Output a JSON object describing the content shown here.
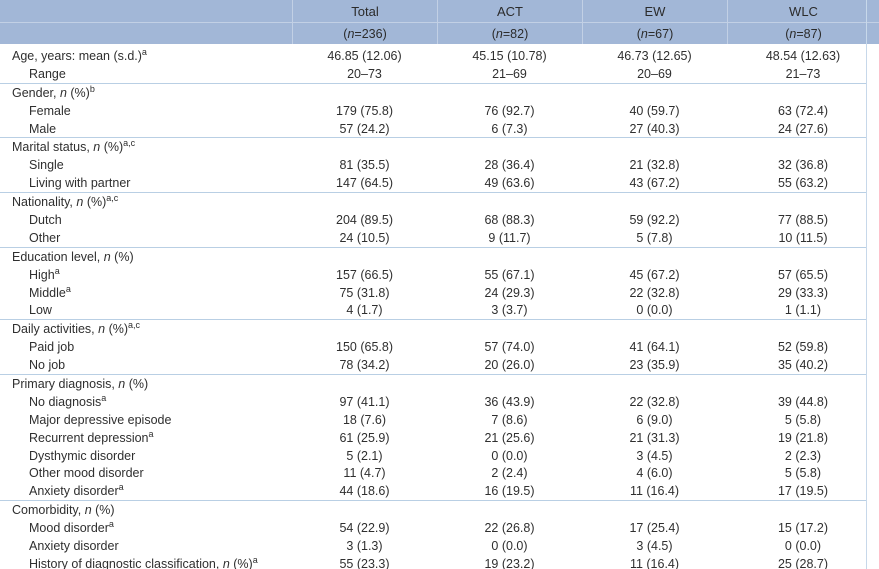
{
  "colors": {
    "header_bg": "#a2b7d7",
    "divider": "#b9cfe4",
    "grid_line": "rgba(255,255,255,0.35)",
    "text": "#2f2f2f"
  },
  "header": {
    "n_open": "(",
    "n_var": "n",
    "n_eq": " = ",
    "n_close": ")",
    "columns": [
      {
        "name": "Total",
        "n": "236"
      },
      {
        "name": "ACT",
        "n": "82"
      },
      {
        "name": "EW",
        "n": "67"
      },
      {
        "name": "WLC",
        "n": "87"
      }
    ]
  },
  "table": {
    "rows": [
      {
        "label": {
          "pre": "Age, years: mean (s.d.)",
          "sup": "a"
        },
        "indent": false,
        "values": [
          "46.85 (12.06)",
          "45.15 (10.78)",
          "46.73 (12.65)",
          "48.54 (12.63)"
        ],
        "divider_after": false
      },
      {
        "label": {
          "pre": "Range"
        },
        "indent": true,
        "values": [
          "20–73",
          "21–69",
          "20–69",
          "21–73"
        ],
        "divider_after": true
      },
      {
        "label": {
          "pre": "Gender, ",
          "it": "n",
          "post": " (%)",
          "sup": "b"
        },
        "indent": false,
        "values": [
          "",
          "",
          "",
          ""
        ],
        "divider_after": false
      },
      {
        "label": {
          "pre": "Female"
        },
        "indent": true,
        "values": [
          "179 (75.8)",
          "76 (92.7)",
          "40 (59.7)",
          "63 (72.4)"
        ],
        "divider_after": false
      },
      {
        "label": {
          "pre": "Male"
        },
        "indent": true,
        "values": [
          "57 (24.2)",
          "6 (7.3)",
          "27 (40.3)",
          "24 (27.6)"
        ],
        "divider_after": true
      },
      {
        "label": {
          "pre": "Marital status, ",
          "it": "n",
          "post": " (%)",
          "sup": "a,c"
        },
        "indent": false,
        "values": [
          "",
          "",
          "",
          ""
        ],
        "divider_after": false
      },
      {
        "label": {
          "pre": "Single"
        },
        "indent": true,
        "values": [
          "81 (35.5)",
          "28 (36.4)",
          "21 (32.8)",
          "32 (36.8)"
        ],
        "divider_after": false
      },
      {
        "label": {
          "pre": "Living with partner"
        },
        "indent": true,
        "values": [
          "147 (64.5)",
          "49 (63.6)",
          "43 (67.2)",
          "55 (63.2)"
        ],
        "divider_after": true
      },
      {
        "label": {
          "pre": "Nationality, ",
          "it": "n",
          "post": " (%)",
          "sup": "a,c"
        },
        "indent": false,
        "values": [
          "",
          "",
          "",
          ""
        ],
        "divider_after": false
      },
      {
        "label": {
          "pre": "Dutch"
        },
        "indent": true,
        "values": [
          "204 (89.5)",
          "68 (88.3)",
          "59 (92.2)",
          "77 (88.5)"
        ],
        "divider_after": false
      },
      {
        "label": {
          "pre": "Other"
        },
        "indent": true,
        "values": [
          "24 (10.5)",
          "9 (11.7)",
          "5 (7.8)",
          "10 (11.5)"
        ],
        "divider_after": true
      },
      {
        "label": {
          "pre": "Education level, ",
          "it": "n",
          "post": " (%)"
        },
        "indent": false,
        "values": [
          "",
          "",
          "",
          ""
        ],
        "divider_after": false
      },
      {
        "label": {
          "pre": "High",
          "sup": "a"
        },
        "indent": true,
        "values": [
          "157 (66.5)",
          "55 (67.1)",
          "45 (67.2)",
          "57 (65.5)"
        ],
        "divider_after": false
      },
      {
        "label": {
          "pre": "Middle",
          "sup": "a"
        },
        "indent": true,
        "values": [
          "75 (31.8)",
          "24 (29.3)",
          "22 (32.8)",
          "29 (33.3)"
        ],
        "divider_after": false
      },
      {
        "label": {
          "pre": "Low"
        },
        "indent": true,
        "values": [
          "4 (1.7)",
          "3 (3.7)",
          "0 (0.0)",
          "1 (1.1)"
        ],
        "divider_after": true
      },
      {
        "label": {
          "pre": "Daily activities, ",
          "it": "n",
          "post": " (%)",
          "sup": "a,c"
        },
        "indent": false,
        "values": [
          "",
          "",
          "",
          ""
        ],
        "divider_after": false
      },
      {
        "label": {
          "pre": "Paid job"
        },
        "indent": true,
        "values": [
          "150 (65.8)",
          "57 (74.0)",
          "41 (64.1)",
          "52 (59.8)"
        ],
        "divider_after": false
      },
      {
        "label": {
          "pre": "No job"
        },
        "indent": true,
        "values": [
          "78 (34.2)",
          "20 (26.0)",
          "23 (35.9)",
          "35 (40.2)"
        ],
        "divider_after": true
      },
      {
        "label": {
          "pre": "Primary diagnosis, ",
          "it": "n",
          "post": " (%)"
        },
        "indent": false,
        "values": [
          "",
          "",
          "",
          ""
        ],
        "divider_after": false
      },
      {
        "label": {
          "pre": "No diagnosis",
          "sup": "a"
        },
        "indent": true,
        "values": [
          "97 (41.1)",
          "36 (43.9)",
          "22 (32.8)",
          "39 (44.8)"
        ],
        "divider_after": false
      },
      {
        "label": {
          "pre": "Major depressive episode"
        },
        "indent": true,
        "values": [
          "18 (7.6)",
          "7 (8.6)",
          "6 (9.0)",
          "5 (5.8)"
        ],
        "divider_after": false
      },
      {
        "label": {
          "pre": "Recurrent depression",
          "sup": "a"
        },
        "indent": true,
        "values": [
          "61 (25.9)",
          "21 (25.6)",
          "21 (31.3)",
          "19 (21.8)"
        ],
        "divider_after": false
      },
      {
        "label": {
          "pre": "Dysthymic disorder"
        },
        "indent": true,
        "values": [
          "5 (2.1)",
          "0 (0.0)",
          "3 (4.5)",
          "2 (2.3)"
        ],
        "divider_after": false
      },
      {
        "label": {
          "pre": "Other mood disorder"
        },
        "indent": true,
        "values": [
          "11 (4.7)",
          "2 (2.4)",
          "4 (6.0)",
          "5 (5.8)"
        ],
        "divider_after": false
      },
      {
        "label": {
          "pre": "Anxiety disorder",
          "sup": "a"
        },
        "indent": true,
        "values": [
          "44 (18.6)",
          "16 (19.5)",
          "11 (16.4)",
          "17 (19.5)"
        ],
        "divider_after": true
      },
      {
        "label": {
          "pre": "Comorbidity, ",
          "it": "n",
          "post": " (%)"
        },
        "indent": false,
        "values": [
          "",
          "",
          "",
          ""
        ],
        "divider_after": false
      },
      {
        "label": {
          "pre": "Mood disorder",
          "sup": "a"
        },
        "indent": true,
        "values": [
          "54 (22.9)",
          "22 (26.8)",
          "17 (25.4)",
          "15 (17.2)"
        ],
        "divider_after": false
      },
      {
        "label": {
          "pre": "Anxiety disorder"
        },
        "indent": true,
        "values": [
          "3 (1.3)",
          "0 (0.0)",
          "3 (4.5)",
          "0 (0.0)"
        ],
        "divider_after": false
      },
      {
        "label": {
          "pre": "History of diagnostic classification, ",
          "it": "n",
          "post": " (%)",
          "sup": "a"
        },
        "indent": true,
        "values": [
          "55 (23.3)",
          "19 (23.2)",
          "11 (16.4)",
          "25 (28.7)"
        ],
        "divider_after": false
      }
    ]
  }
}
